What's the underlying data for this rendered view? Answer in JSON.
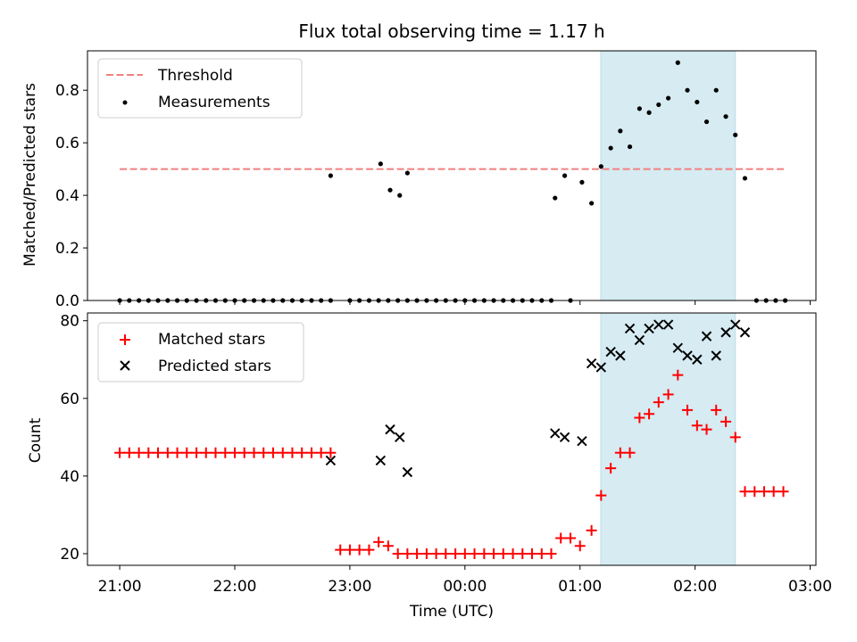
{
  "chart_data": [
    {
      "type": "scatter",
      "title": "Flux total observing time = 1.17 h",
      "xlabel": "",
      "ylabel": "Matched/Predicted stars",
      "x_tick_labels": [
        "21:00",
        "22:00",
        "23:00",
        "00:00",
        "01:00",
        "02:00",
        "03:00"
      ],
      "xlim_hours": [
        20.72,
        27.05
      ],
      "ylim": [
        0,
        0.95
      ],
      "y_ticks": [
        0.0,
        0.2,
        0.4,
        0.6,
        0.8
      ],
      "y_tick_labels": [
        "0.0",
        "0.2",
        "0.4",
        "0.6",
        "0.8"
      ],
      "shaded_region_hours": [
        25.18,
        26.35
      ],
      "legend": {
        "position": "upper-left",
        "entries": [
          "Threshold",
          "Measurements"
        ]
      },
      "threshold": {
        "name": "Threshold",
        "value": 0.5,
        "x_range_hours": [
          21.0,
          26.78
        ],
        "color": "#f08080"
      },
      "series": [
        {
          "name": "Measurements",
          "color": "#000000",
          "x": [
            21.0,
            21.083,
            21.167,
            21.25,
            21.333,
            21.417,
            21.5,
            21.583,
            21.667,
            21.75,
            21.833,
            21.917,
            22.0,
            22.083,
            22.167,
            22.25,
            22.333,
            22.417,
            22.5,
            22.583,
            22.667,
            22.75,
            22.833,
            23.0,
            23.083,
            23.167,
            23.25,
            23.333,
            23.417,
            23.5,
            23.583,
            23.667,
            23.75,
            23.833,
            23.917,
            24.0,
            24.083,
            24.167,
            24.25,
            24.333,
            24.417,
            24.5,
            24.583,
            24.667,
            24.75,
            24.917,
            22.833,
            23.267,
            23.35,
            23.433,
            23.5,
            24.783,
            24.867,
            25.017,
            25.1,
            25.183,
            25.267,
            25.35,
            25.433,
            25.517,
            25.6,
            25.683,
            25.767,
            25.85,
            25.933,
            26.017,
            26.1,
            26.183,
            26.267,
            26.35,
            26.433,
            26.533,
            26.617,
            26.7,
            26.783
          ],
          "y": [
            0,
            0,
            0,
            0,
            0,
            0,
            0,
            0,
            0,
            0,
            0,
            0,
            0,
            0,
            0,
            0,
            0,
            0,
            0,
            0,
            0,
            0,
            0,
            0,
            0,
            0,
            0,
            0,
            0,
            0,
            0,
            0,
            0,
            0,
            0,
            0,
            0,
            0,
            0,
            0,
            0,
            0,
            0,
            0,
            0,
            0,
            0.475,
            0.52,
            0.42,
            0.4,
            0.485,
            0.39,
            0.475,
            0.45,
            0.37,
            0.51,
            0.58,
            0.645,
            0.585,
            0.73,
            0.715,
            0.745,
            0.77,
            0.905,
            0.8,
            0.755,
            0.68,
            0.8,
            0.7,
            0.63,
            0.465,
            0,
            0,
            0,
            0
          ]
        }
      ]
    },
    {
      "type": "scatter",
      "title": "",
      "xlabel": "Time (UTC)",
      "ylabel": "Count",
      "x_tick_labels": [
        "21:00",
        "22:00",
        "23:00",
        "00:00",
        "01:00",
        "02:00",
        "03:00"
      ],
      "xlim_hours": [
        20.72,
        27.05
      ],
      "ylim": [
        17,
        82
      ],
      "y_ticks": [
        20,
        40,
        60,
        80
      ],
      "y_tick_labels": [
        "20",
        "40",
        "60",
        "80"
      ],
      "shaded_region_hours": [
        25.18,
        26.35
      ],
      "legend": {
        "position": "upper-left",
        "entries": [
          "Matched stars",
          "Predicted stars"
        ]
      },
      "series": [
        {
          "name": "Matched stars",
          "marker": "plus",
          "color": "#ff0000",
          "x": [
            21.0,
            21.083,
            21.167,
            21.25,
            21.333,
            21.417,
            21.5,
            21.583,
            21.667,
            21.75,
            21.833,
            21.917,
            22.0,
            22.083,
            22.167,
            22.25,
            22.333,
            22.417,
            22.5,
            22.583,
            22.667,
            22.75,
            22.833,
            22.917,
            23.0,
            23.083,
            23.167,
            23.25,
            23.333,
            23.417,
            23.5,
            23.583,
            23.667,
            23.75,
            23.833,
            23.917,
            24.0,
            24.083,
            24.167,
            24.25,
            24.333,
            24.417,
            24.5,
            24.583,
            24.667,
            24.75,
            24.833,
            24.917,
            25.0,
            25.1,
            25.183,
            25.267,
            25.35,
            25.433,
            25.517,
            25.6,
            25.683,
            25.767,
            25.85,
            25.933,
            26.017,
            26.1,
            26.183,
            26.267,
            26.35,
            26.433,
            26.517,
            26.6,
            26.683,
            26.767
          ],
          "y": [
            46,
            46,
            46,
            46,
            46,
            46,
            46,
            46,
            46,
            46,
            46,
            46,
            46,
            46,
            46,
            46,
            46,
            46,
            46,
            46,
            46,
            46,
            46,
            21,
            21,
            21,
            21,
            23,
            22,
            20,
            20,
            20,
            20,
            20,
            20,
            20,
            20,
            20,
            20,
            20,
            20,
            20,
            20,
            20,
            20,
            20,
            24,
            24,
            22,
            26,
            35,
            42,
            46,
            46,
            55,
            56,
            59,
            61,
            66,
            57,
            53,
            52,
            57,
            54,
            50,
            36,
            36,
            36,
            36,
            36
          ]
        },
        {
          "name": "Predicted stars",
          "marker": "x",
          "color": "#000000",
          "x": [
            22.833,
            23.267,
            23.35,
            23.433,
            23.5,
            24.783,
            24.867,
            25.017,
            25.1,
            25.183,
            25.267,
            25.35,
            25.433,
            25.517,
            25.6,
            25.683,
            25.767,
            25.85,
            25.933,
            26.017,
            26.1,
            26.183,
            26.267,
            26.35,
            26.433
          ],
          "y": [
            44,
            44,
            52,
            50,
            41,
            51,
            50,
            49,
            69,
            68,
            72,
            71,
            78,
            75,
            78,
            79,
            79,
            73,
            71,
            70,
            76,
            71,
            77,
            79,
            77
          ]
        }
      ]
    }
  ]
}
